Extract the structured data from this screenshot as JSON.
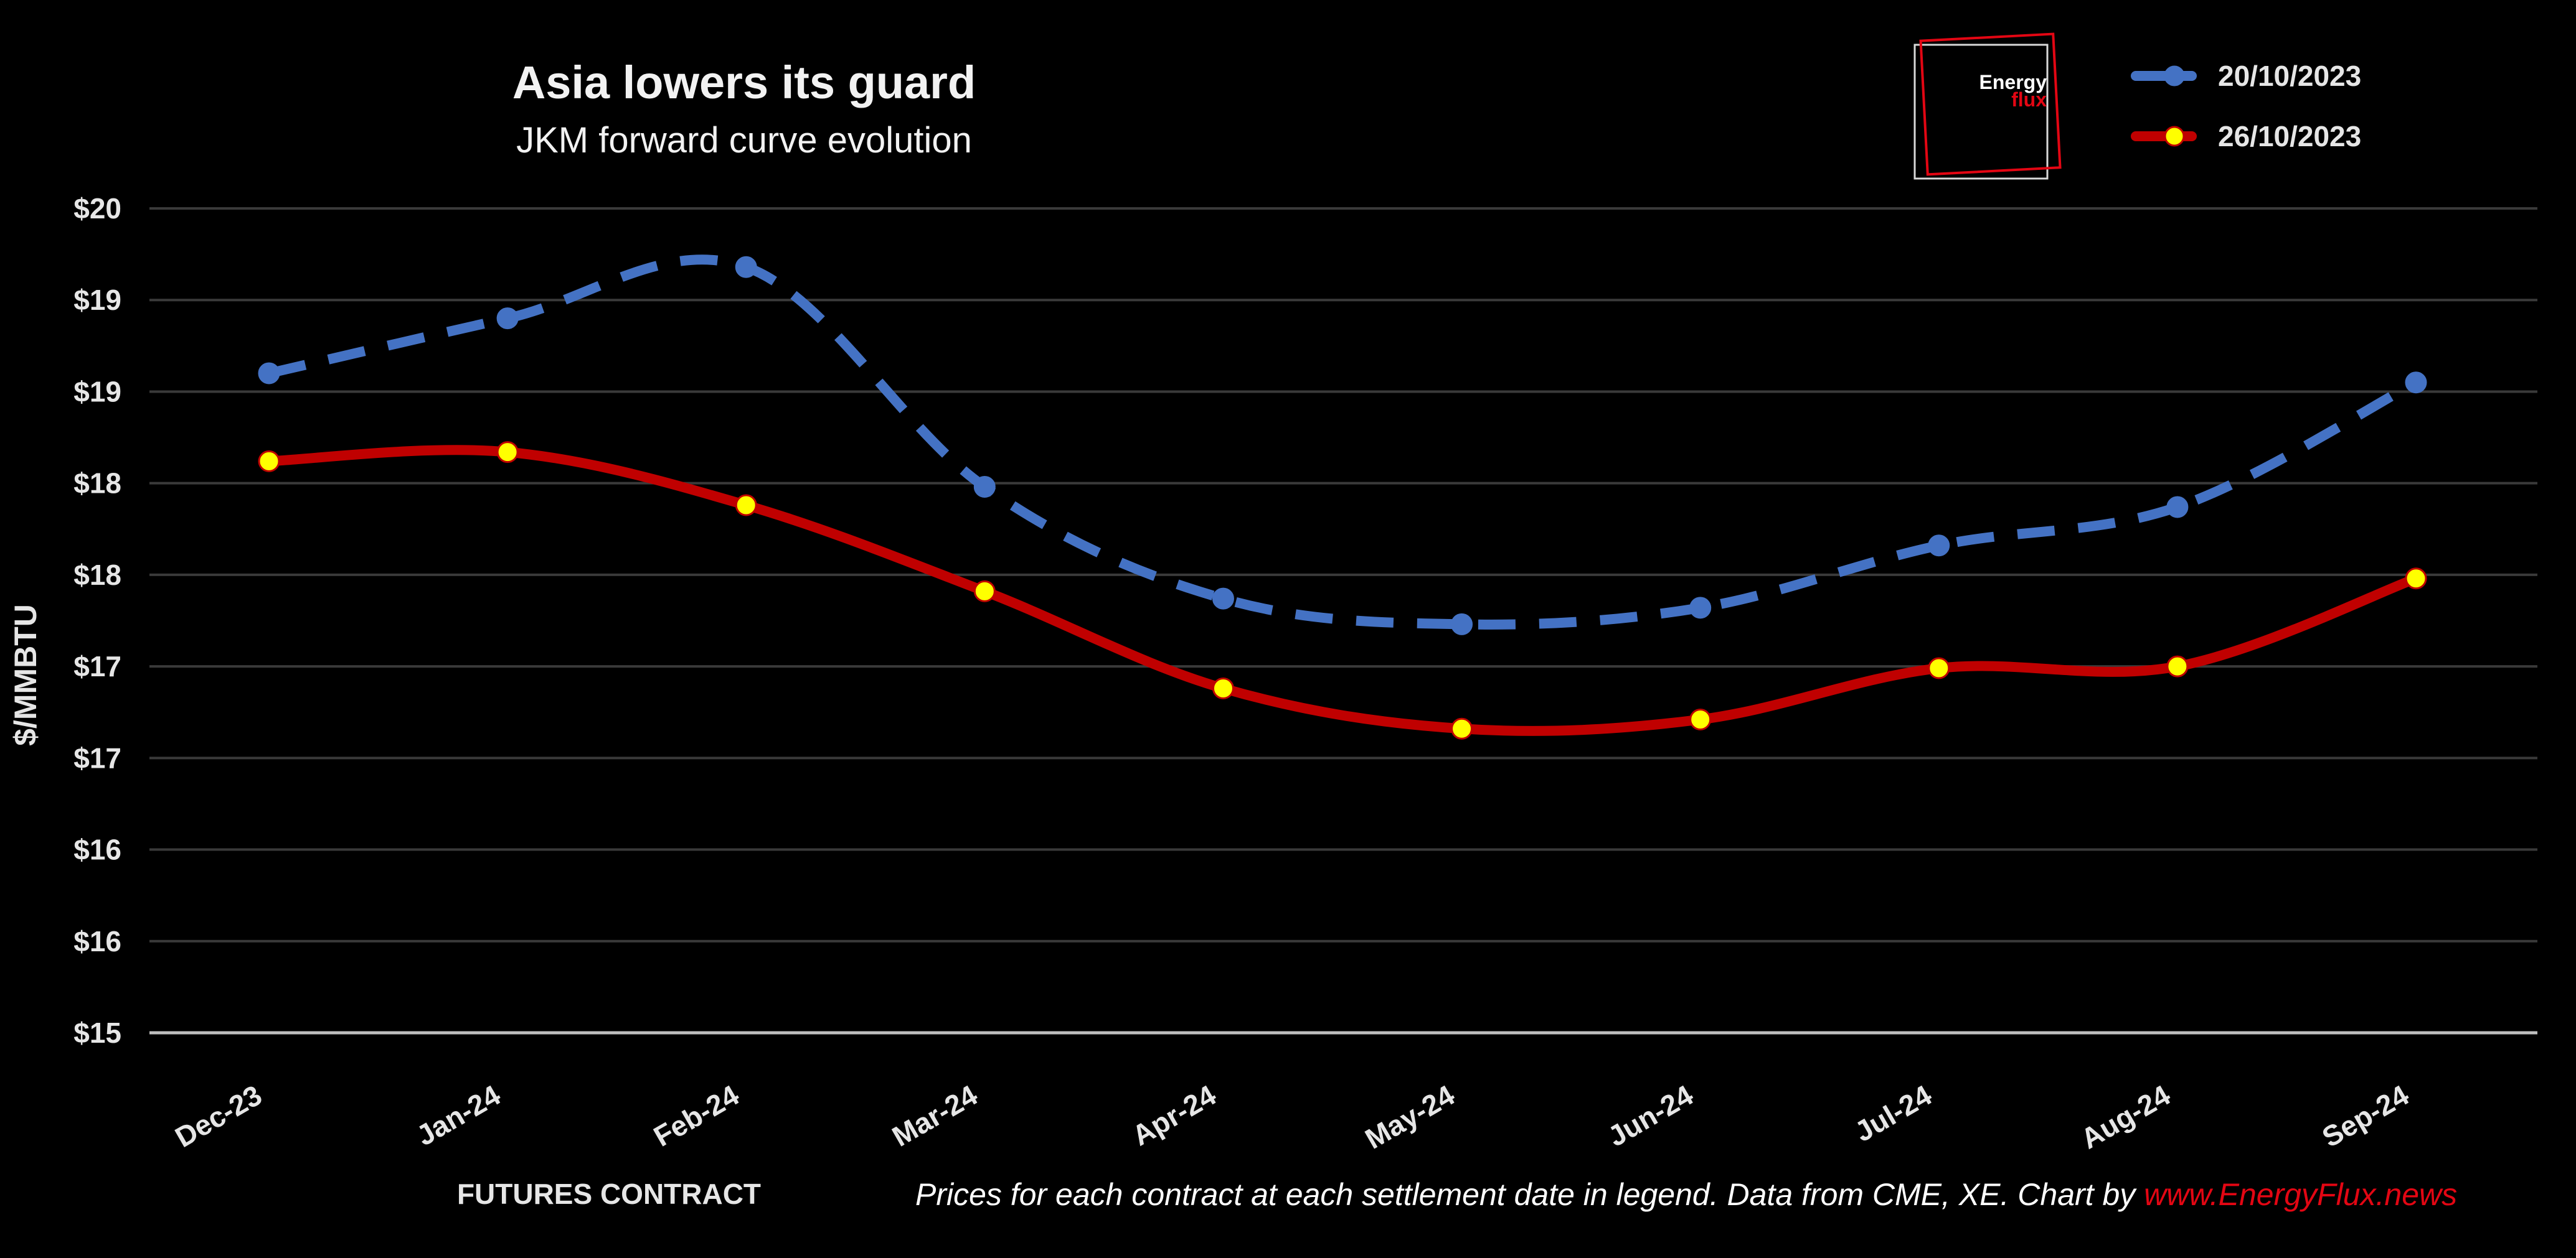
{
  "chart_data": {
    "type": "line",
    "title": "Asia lowers its guard",
    "subtitle": "JKM forward curve evolution",
    "xlabel": "FUTURES CONTRACT",
    "ylabel": "$/MMBTU",
    "categories": [
      "Dec-23",
      "Jan-24",
      "Feb-24",
      "Mar-24",
      "Apr-24",
      "May-24",
      "Jun-24",
      "Jul-24",
      "Aug-24",
      "Sep-24"
    ],
    "y_tick_labels": [
      "$15",
      "$16",
      "$16",
      "$17",
      "$17",
      "$18",
      "$18",
      "$19",
      "$19",
      "$20"
    ],
    "ylim": [
      15,
      19.5
    ],
    "grid": true,
    "legend_position": "top-right",
    "series": [
      {
        "name": "20/10/2023",
        "color": "#4472c4",
        "marker_color": "#4472c4",
        "line_style": "dashed",
        "values": [
          18.6,
          18.9,
          19.18,
          17.98,
          17.37,
          17.23,
          17.32,
          17.66,
          17.87,
          18.55
        ]
      },
      {
        "name": "26/10/2023",
        "color": "#c00000",
        "marker_color": "#ffff00",
        "line_style": "solid",
        "values": [
          18.12,
          18.17,
          17.88,
          17.41,
          16.88,
          16.66,
          16.71,
          16.99,
          17.0,
          17.48
        ]
      }
    ]
  },
  "logo": {
    "line1": "Energy",
    "line2": "flux"
  },
  "footnote": {
    "text": "Prices for each contract at each settlement date in legend. Data from CME, XE. Chart by ",
    "link": "www.EnergyFlux.news"
  },
  "colors": {
    "background": "#000000",
    "text": "#e6e6e6",
    "grid": "#3a3a3a",
    "brand_red": "#e30613"
  }
}
